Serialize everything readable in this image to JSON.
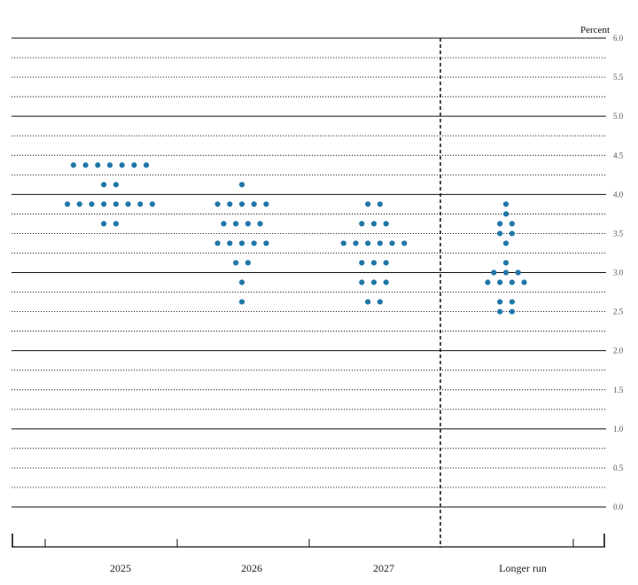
{
  "chart_data": {
    "type": "scatter",
    "unit_label": "Percent",
    "categories": [
      "2025",
      "2026",
      "2027",
      "Longer run"
    ],
    "ylim": [
      0.0,
      6.0
    ],
    "y_ticks": [
      "0.0",
      "0.5",
      "1.0",
      "1.5",
      "2.0",
      "2.5",
      "3.0",
      "3.5",
      "4.0",
      "4.5",
      "5.0",
      "5.5",
      "6.0"
    ],
    "grid": "horizontal lines every 0.25; solid at whole numbers, dotted otherwise",
    "separator": "dashed vertical line between 2027 and Longer run",
    "dot_color": "#1f77a8",
    "points": [
      {
        "category": "2025",
        "y": 4.375,
        "count": 7
      },
      {
        "category": "2025",
        "y": 4.125,
        "count": 2
      },
      {
        "category": "2025",
        "y": 3.875,
        "count": 8
      },
      {
        "category": "2025",
        "y": 3.625,
        "count": 2
      },
      {
        "category": "2026",
        "y": 4.125,
        "count": 1
      },
      {
        "category": "2026",
        "y": 3.875,
        "count": 5
      },
      {
        "category": "2026",
        "y": 3.625,
        "count": 4
      },
      {
        "category": "2026",
        "y": 3.375,
        "count": 5
      },
      {
        "category": "2026",
        "y": 3.125,
        "count": 2
      },
      {
        "category": "2026",
        "y": 2.875,
        "count": 1
      },
      {
        "category": "2026",
        "y": 2.625,
        "count": 1
      },
      {
        "category": "2027",
        "y": 3.875,
        "count": 2
      },
      {
        "category": "2027",
        "y": 3.625,
        "count": 3
      },
      {
        "category": "2027",
        "y": 3.375,
        "count": 6
      },
      {
        "category": "2027",
        "y": 3.125,
        "count": 3
      },
      {
        "category": "2027",
        "y": 2.875,
        "count": 3
      },
      {
        "category": "2027",
        "y": 2.625,
        "count": 2
      },
      {
        "category": "Longer run",
        "y": 3.875,
        "count": 1
      },
      {
        "category": "Longer run",
        "y": 3.75,
        "count": 1
      },
      {
        "category": "Longer run",
        "y": 3.625,
        "count": 2
      },
      {
        "category": "Longer run",
        "y": 3.5,
        "count": 2
      },
      {
        "category": "Longer run",
        "y": 3.375,
        "count": 1
      },
      {
        "category": "Longer run",
        "y": 3.125,
        "count": 1
      },
      {
        "category": "Longer run",
        "y": 3.0,
        "count": 3
      },
      {
        "category": "Longer run",
        "y": 2.875,
        "count": 4
      },
      {
        "category": "Longer run",
        "y": 2.625,
        "count": 2
      },
      {
        "category": "Longer run",
        "y": 2.5,
        "count": 2
      }
    ]
  }
}
